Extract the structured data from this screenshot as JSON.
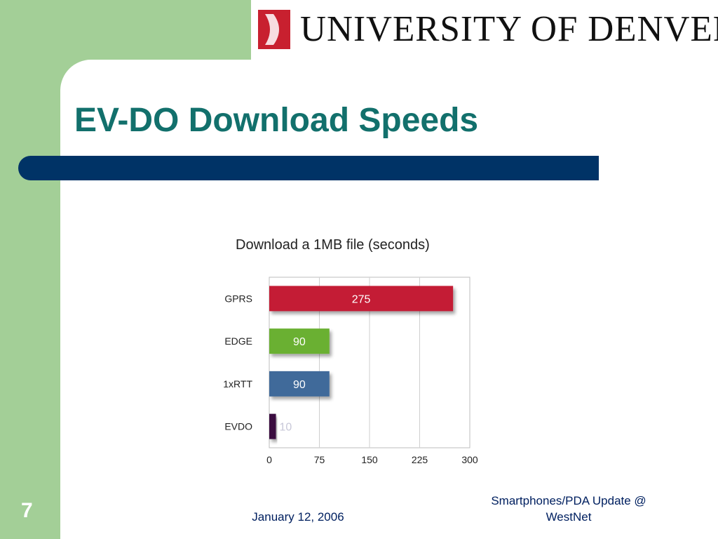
{
  "header": {
    "logo_text": "UNIVERSITY OF DENVER",
    "colors": {
      "logo_mark": "#c8202f",
      "background_panel": "#a3cf97",
      "rule": "#003366",
      "title": "#12706c"
    }
  },
  "slide": {
    "title": "EV-DO Download Speeds",
    "number": "7",
    "footer_date": "January 12, 2006",
    "footer_event": "Smartphones/PDA Update @ WestNet"
  },
  "chart_data": {
    "type": "bar",
    "orientation": "horizontal",
    "title": "Download a 1MB file (seconds)",
    "categories": [
      "GPRS",
      "EDGE",
      "1xRTT",
      "EVDO"
    ],
    "values": [
      275,
      90,
      90,
      10
    ],
    "colors": [
      "#c41e35",
      "#6ab030",
      "#3f6a9a",
      "#3a1040"
    ],
    "xlim": [
      0,
      300
    ],
    "xticks": [
      0,
      75,
      150,
      225,
      300
    ],
    "grid": true
  }
}
